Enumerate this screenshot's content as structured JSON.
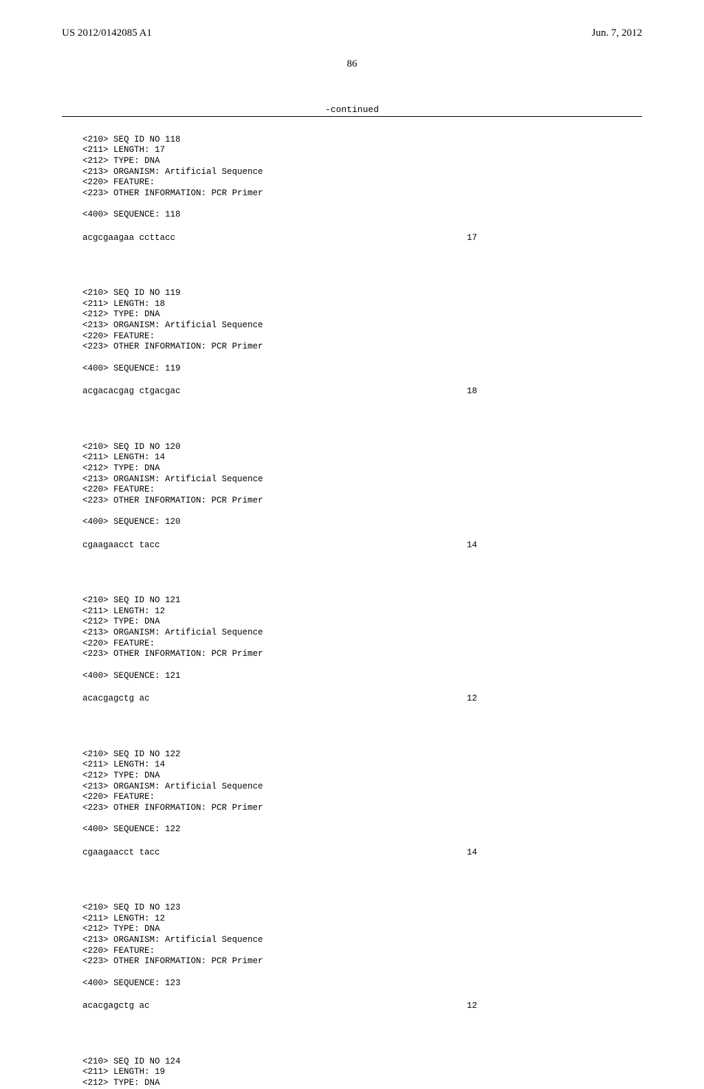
{
  "header": {
    "left": "US 2012/0142085 A1",
    "right": "Jun. 7, 2012"
  },
  "page_number": "86",
  "continued_label": "-continued",
  "entries": [
    {
      "lines": [
        "<210> SEQ ID NO 118",
        "<211> LENGTH: 17",
        "<212> TYPE: DNA",
        "<213> ORGANISM: Artificial Sequence",
        "<220> FEATURE:",
        "<223> OTHER INFORMATION: PCR Primer"
      ],
      "seq_label": "<400> SEQUENCE: 118",
      "sequence": "acgcgaagaa ccttacc",
      "length": "17"
    },
    {
      "lines": [
        "<210> SEQ ID NO 119",
        "<211> LENGTH: 18",
        "<212> TYPE: DNA",
        "<213> ORGANISM: Artificial Sequence",
        "<220> FEATURE:",
        "<223> OTHER INFORMATION: PCR Primer"
      ],
      "seq_label": "<400> SEQUENCE: 119",
      "sequence": "acgacacgag ctgacgac",
      "length": "18"
    },
    {
      "lines": [
        "<210> SEQ ID NO 120",
        "<211> LENGTH: 14",
        "<212> TYPE: DNA",
        "<213> ORGANISM: Artificial Sequence",
        "<220> FEATURE:",
        "<223> OTHER INFORMATION: PCR Primer"
      ],
      "seq_label": "<400> SEQUENCE: 120",
      "sequence": "cgaagaacct tacc",
      "length": "14"
    },
    {
      "lines": [
        "<210> SEQ ID NO 121",
        "<211> LENGTH: 12",
        "<212> TYPE: DNA",
        "<213> ORGANISM: Artificial Sequence",
        "<220> FEATURE:",
        "<223> OTHER INFORMATION: PCR Primer"
      ],
      "seq_label": "<400> SEQUENCE: 121",
      "sequence": "acacgagctg ac",
      "length": "12"
    },
    {
      "lines": [
        "<210> SEQ ID NO 122",
        "<211> LENGTH: 14",
        "<212> TYPE: DNA",
        "<213> ORGANISM: Artificial Sequence",
        "<220> FEATURE:",
        "<223> OTHER INFORMATION: PCR Primer"
      ],
      "seq_label": "<400> SEQUENCE: 122",
      "sequence": "cgaagaacct tacc",
      "length": "14"
    },
    {
      "lines": [
        "<210> SEQ ID NO 123",
        "<211> LENGTH: 12",
        "<212> TYPE: DNA",
        "<213> ORGANISM: Artificial Sequence",
        "<220> FEATURE:",
        "<223> OTHER INFORMATION: PCR Primer"
      ],
      "seq_label": "<400> SEQUENCE: 123",
      "sequence": "acacgagctg ac",
      "length": "12"
    }
  ],
  "trailing_lines": [
    "<210> SEQ ID NO 124",
    "<211> LENGTH: 19",
    "<212> TYPE: DNA"
  ]
}
